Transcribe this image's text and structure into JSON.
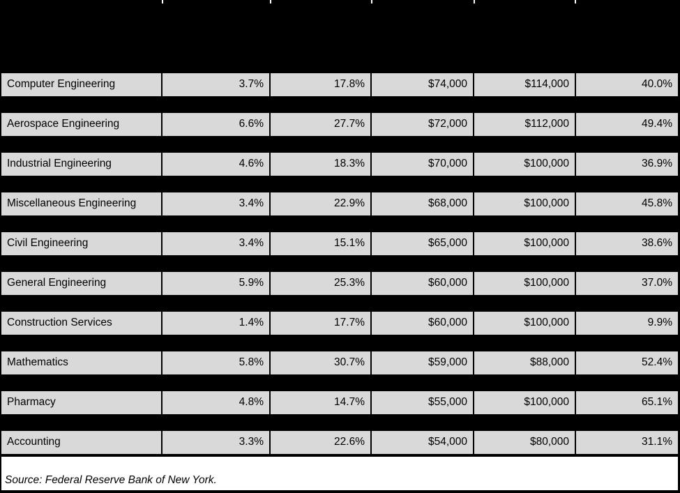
{
  "chart_data": {
    "type": "table",
    "rows": [
      [
        "Computer Engineering",
        "3.7%",
        "17.8%",
        "$74,000",
        "$114,000",
        "40.0%"
      ],
      [
        "Aerospace Engineering",
        "6.6%",
        "27.7%",
        "$72,000",
        "$112,000",
        "49.4%"
      ],
      [
        "Industrial Engineering",
        "4.6%",
        "18.3%",
        "$70,000",
        "$100,000",
        "36.9%"
      ],
      [
        "Miscellaneous Engineering",
        "3.4%",
        "22.9%",
        "$68,000",
        "$100,000",
        "45.8%"
      ],
      [
        "Civil Engineering",
        "3.4%",
        "15.1%",
        "$65,000",
        "$100,000",
        "38.6%"
      ],
      [
        "General Engineering",
        "5.9%",
        "25.3%",
        "$60,000",
        "$100,000",
        "37.0%"
      ],
      [
        "Construction Services",
        "1.4%",
        "17.7%",
        "$60,000",
        "$100,000",
        "9.9%"
      ],
      [
        "Mathematics",
        "5.8%",
        "30.7%",
        "$59,000",
        "$88,000",
        "52.4%"
      ],
      [
        "Pharmacy",
        "4.8%",
        "14.7%",
        "$55,000",
        "$100,000",
        "65.1%"
      ],
      [
        "Accounting",
        "3.3%",
        "22.6%",
        "$54,000",
        "$80,000",
        "31.1%"
      ]
    ],
    "source": "Source: Federal Reserve Bank of New York.",
    "layout_hints": {
      "header_band": "solid black, no visible text",
      "row_fill": "#d9d9d9",
      "separator_fill": "#000000",
      "footer_bg": "#ffffff"
    }
  }
}
